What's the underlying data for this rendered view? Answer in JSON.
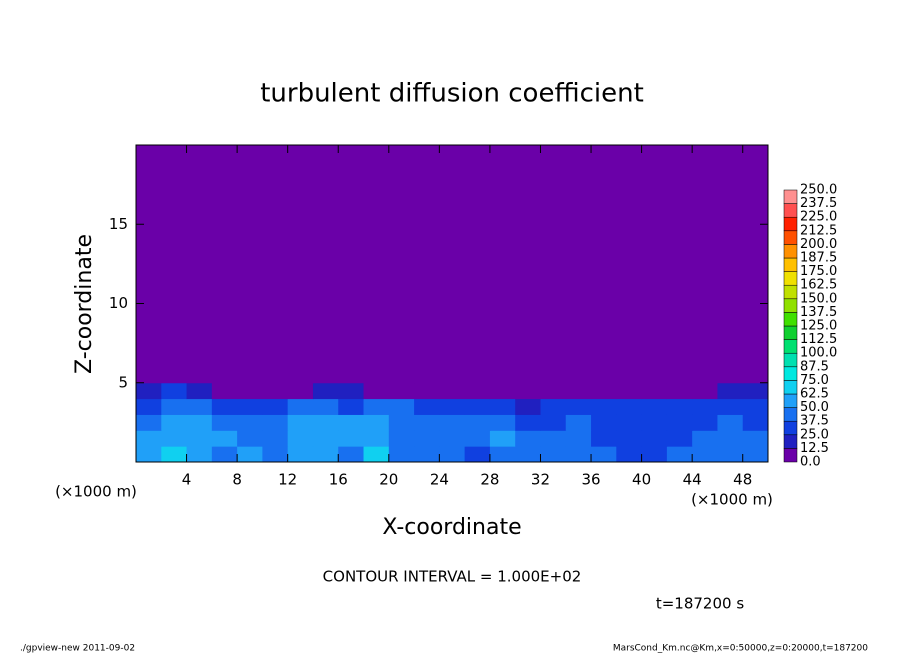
{
  "chart_data": {
    "type": "contour",
    "title": "turbulent diffusion coefficient",
    "xlabel": "X-coordinate",
    "ylabel": "Z-coordinate",
    "x_unit": "(×1000 m)",
    "y_unit": "(×1000 m)",
    "annotation": "CONTOUR INTERVAL = 1.000E+02",
    "time_label": "t=187200 s",
    "footer_left": "./gpview-new  2011-09-02",
    "footer_right": "MarsCond_Km.nc@Km,x=0:50000,z=0:20000,t=187200",
    "xlim": [
      0,
      50
    ],
    "ylim": [
      0,
      20
    ],
    "xticks": [
      4,
      8,
      12,
      16,
      20,
      24,
      28,
      32,
      36,
      40,
      44,
      48
    ],
    "yticks": [
      5,
      10,
      15
    ],
    "field": {
      "x_edges": [
        0,
        2,
        4,
        6,
        8,
        10,
        12,
        14,
        16,
        18,
        20,
        22,
        24,
        26,
        28,
        30,
        32,
        34,
        36,
        38,
        40,
        42,
        44,
        46,
        48,
        50
      ],
      "z_edges": [
        0,
        1,
        2,
        3,
        4,
        5,
        20
      ],
      "values": [
        [
          60,
          70,
          50,
          45,
          50,
          40,
          55,
          60,
          45,
          70,
          45,
          40,
          40,
          35,
          45,
          40,
          40,
          45,
          40,
          35,
          35,
          40,
          40,
          45,
          40
        ],
        [
          50,
          60,
          55,
          50,
          45,
          45,
          50,
          60,
          50,
          55,
          45,
          40,
          40,
          40,
          50,
          40,
          40,
          40,
          35,
          30,
          30,
          35,
          40,
          45,
          40
        ],
        [
          40,
          55,
          50,
          45,
          40,
          45,
          50,
          55,
          50,
          50,
          45,
          45,
          40,
          40,
          45,
          35,
          35,
          40,
          30,
          30,
          25,
          30,
          35,
          40,
          35
        ],
        [
          30,
          45,
          40,
          35,
          35,
          30,
          40,
          45,
          35,
          40,
          40,
          35,
          30,
          30,
          35,
          20,
          30,
          30,
          30,
          30,
          25,
          25,
          25,
          35,
          30
        ],
        [
          15,
          25,
          20,
          5,
          5,
          10,
          10,
          15,
          20,
          10,
          10,
          5,
          5,
          5,
          10,
          5,
          5,
          5,
          5,
          5,
          5,
          5,
          10,
          20,
          20
        ],
        [
          0,
          0,
          0,
          0,
          0,
          0,
          0,
          0,
          0,
          0,
          0,
          0,
          0,
          0,
          0,
          0,
          0,
          0,
          0,
          0,
          0,
          0,
          0,
          0,
          0
        ]
      ]
    },
    "colorbar": {
      "levels": [
        {
          "value": 0,
          "label": "0.0"
        },
        {
          "value": 12.5,
          "label": "12.5"
        },
        {
          "value": 25,
          "label": "25.0"
        },
        {
          "value": 37.5,
          "label": "37.5"
        },
        {
          "value": 50,
          "label": "50.0"
        },
        {
          "value": 62.5,
          "label": "62.5"
        },
        {
          "value": 75,
          "label": "75.0"
        },
        {
          "value": 87.5,
          "label": "87.5"
        },
        {
          "value": 100,
          "label": "100.0"
        },
        {
          "value": 112.5,
          "label": "112.5"
        },
        {
          "value": 125,
          "label": "125.0"
        },
        {
          "value": 137.5,
          "label": "137.5"
        },
        {
          "value": 150,
          "label": "150.0"
        },
        {
          "value": 162.5,
          "label": "162.5"
        },
        {
          "value": 175,
          "label": "175.0"
        },
        {
          "value": 187.5,
          "label": "187.5"
        },
        {
          "value": 200,
          "label": "200.0"
        },
        {
          "value": 212.5,
          "label": "212.5"
        },
        {
          "value": 225,
          "label": "225.0"
        },
        {
          "value": 237.5,
          "label": "237.5"
        },
        {
          "value": 250,
          "label": "250.0"
        }
      ],
      "colors": [
        "#6a00a8",
        "#2020c0",
        "#1040e0",
        "#1870f0",
        "#20a0f8",
        "#10d0f0",
        "#00e8e0",
        "#00e0b0",
        "#00e070",
        "#10d030",
        "#40e000",
        "#90e000",
        "#c0e000",
        "#f0e000",
        "#ffc000",
        "#ff9000",
        "#ff5000",
        "#ff2000",
        "#ff5050",
        "#ff9090"
      ]
    }
  }
}
